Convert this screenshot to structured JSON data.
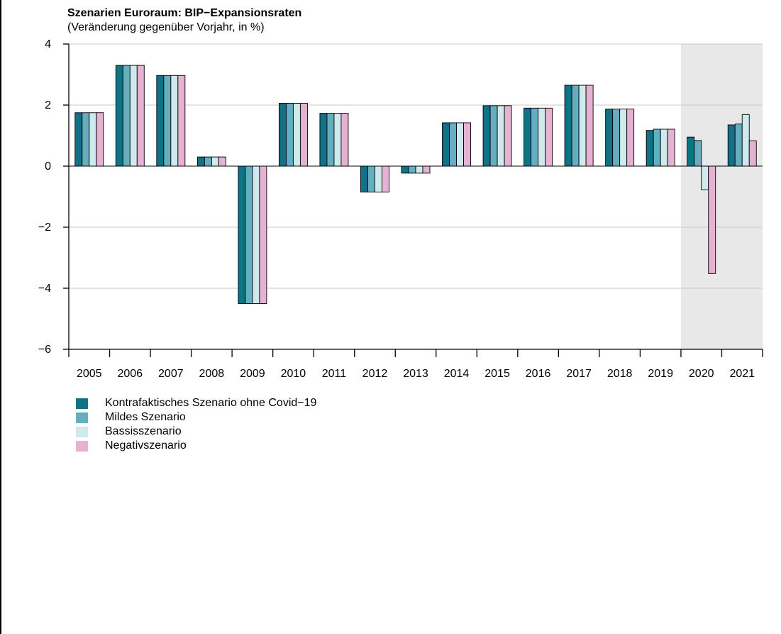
{
  "chart_data": {
    "type": "bar",
    "title": "Szenarien Euroraum: BIP−Expansionsraten",
    "subtitle": "(Veränderung gegenüber Vorjahr, in %)",
    "xlabel": "",
    "ylabel": "",
    "ylim": [
      -6,
      4
    ],
    "yticks": [
      4,
      2,
      0,
      -2,
      -4,
      -6
    ],
    "ytick_labels": [
      "4",
      "2",
      "0",
      "−2",
      "−4",
      "−6"
    ],
    "grid": true,
    "legend_position": "bottom-left",
    "shaded_categories": [
      "2020",
      "2021"
    ],
    "shade_color": "#e8e8e8",
    "categories": [
      "2005",
      "2006",
      "2007",
      "2008",
      "2009",
      "2010",
      "2011",
      "2012",
      "2013",
      "2014",
      "2015",
      "2016",
      "2017",
      "2018",
      "2019",
      "2020",
      "2021"
    ],
    "series": [
      {
        "name": "Kontrafaktisches Szenario ohne Covid−19",
        "color": "#0f7285",
        "values": [
          1.75,
          3.3,
          2.97,
          0.3,
          -4.5,
          2.06,
          1.73,
          -0.85,
          -0.23,
          1.42,
          1.98,
          1.9,
          2.65,
          1.87,
          1.17,
          0.95,
          1.35
        ]
      },
      {
        "name": "Mildes Szenario",
        "color": "#65aec0",
        "values": [
          1.75,
          3.3,
          2.97,
          0.3,
          -4.5,
          2.06,
          1.73,
          -0.85,
          -0.23,
          1.42,
          1.98,
          1.9,
          2.65,
          1.87,
          1.21,
          0.84,
          1.38
        ]
      },
      {
        "name": "Bassisszenario",
        "color": "#cfe9ed",
        "values": [
          1.75,
          3.3,
          2.97,
          0.3,
          -4.5,
          2.06,
          1.73,
          -0.85,
          -0.23,
          1.42,
          1.98,
          1.9,
          2.65,
          1.87,
          1.21,
          -0.78,
          1.69
        ]
      },
      {
        "name": "Negativszenario",
        "color": "#e5b3d1",
        "values": [
          1.75,
          3.3,
          2.97,
          0.3,
          -4.5,
          2.06,
          1.73,
          -0.85,
          -0.23,
          1.42,
          1.98,
          1.9,
          2.65,
          1.87,
          1.21,
          -3.52,
          0.83
        ]
      }
    ]
  }
}
